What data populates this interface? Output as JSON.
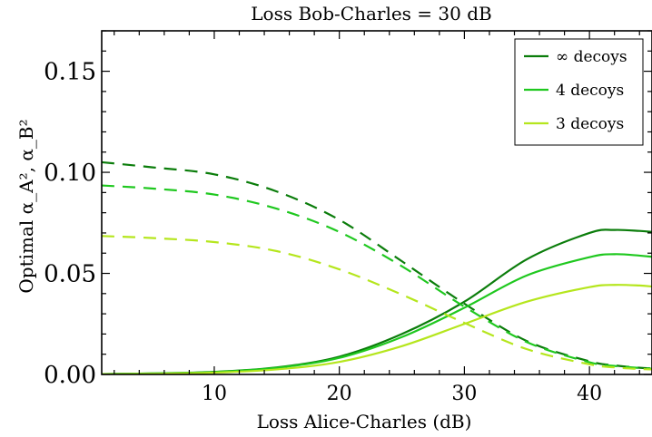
{
  "chart_data": {
    "type": "line",
    "title": "Loss Bob-Charles = 30 dB",
    "xlabel": "Loss Alice-Charles (dB)",
    "ylabel": "Optimal α_A², α_B²",
    "xlim": [
      1,
      45
    ],
    "ylim": [
      0,
      0.17
    ],
    "x_ticks": [
      10,
      20,
      30,
      40
    ],
    "x_tick_labels": [
      "10",
      "20",
      "30",
      "40"
    ],
    "y_ticks": [
      0.0,
      0.05,
      0.1,
      0.15
    ],
    "y_tick_labels": [
      "0.00",
      "0.05",
      "0.10",
      "0.15"
    ],
    "legend_position": "top-right",
    "grid": false,
    "x": [
      1,
      5,
      10,
      15,
      20,
      25,
      30,
      35,
      40,
      42,
      44,
      45
    ],
    "series": [
      {
        "name": "∞ decoys",
        "color": "#0b7d0b",
        "alpha_A": [
          0.0002,
          0.0005,
          0.0013,
          0.0035,
          0.0088,
          0.02,
          0.036,
          0.057,
          0.07,
          0.0715,
          0.071,
          0.0705
        ],
        "alpha_B": [
          0.105,
          0.1025,
          0.099,
          0.0905,
          0.0765,
          0.056,
          0.035,
          0.0165,
          0.0065,
          0.0045,
          0.0033,
          0.003
        ]
      },
      {
        "name": "4 decoys",
        "color": "#1fc81f",
        "alpha_A": [
          0.0002,
          0.0005,
          0.0012,
          0.0033,
          0.0082,
          0.0185,
          0.033,
          0.049,
          0.058,
          0.0595,
          0.0588,
          0.0582
        ],
        "alpha_B": [
          0.0935,
          0.092,
          0.089,
          0.082,
          0.0705,
          0.0535,
          0.0335,
          0.016,
          0.006,
          0.0042,
          0.0032,
          0.0028
        ]
      },
      {
        "name": "3 decoys",
        "color": "#b5e61d",
        "alpha_A": [
          0.0001,
          0.0003,
          0.0009,
          0.0025,
          0.0062,
          0.014,
          0.025,
          0.036,
          0.0432,
          0.0443,
          0.044,
          0.0435
        ],
        "alpha_B": [
          0.0685,
          0.0675,
          0.0655,
          0.061,
          0.052,
          0.0395,
          0.0255,
          0.0125,
          0.005,
          0.0035,
          0.0027,
          0.0025
        ]
      }
    ]
  }
}
